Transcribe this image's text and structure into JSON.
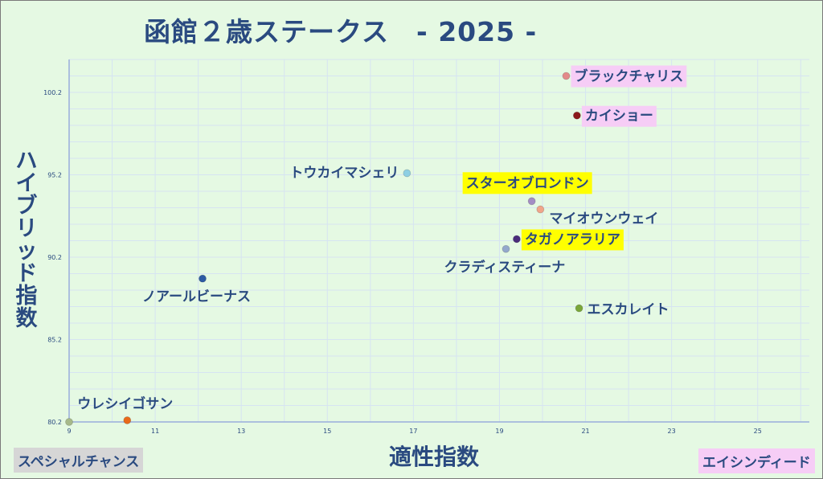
{
  "title": {
    "main": "函館２歳ステークス",
    "year": "- 2025 -"
  },
  "corner_labels": {
    "bottom_left": "スペシャルチャンス",
    "bottom_right": "エイシンディード"
  },
  "colors": {
    "background": "#e5f9e3",
    "text": "#2a4a80",
    "grid": "#d6e4f2",
    "highlight_yellow": "#ffff00",
    "highlight_pink": "#f6cdf6"
  },
  "chart_data": {
    "type": "scatter",
    "title": "函館２歳ステークス - 2025 -",
    "xlabel": "適性指数",
    "ylabel": "ハイブリッド指数",
    "xlim": [
      9,
      26.2
    ],
    "ylim": [
      80.2,
      102.2
    ],
    "xticks": [
      9,
      11,
      13,
      15,
      17,
      19,
      21,
      23,
      25
    ],
    "yticks": [
      80.2,
      85.2,
      90.2,
      95.2,
      100.2
    ],
    "grid": true,
    "points": [
      {
        "name": "ブラックチャリス",
        "x": 20.55,
        "y": 101.2,
        "color": "#e38a8a",
        "label_highlight": "pink"
      },
      {
        "name": "カイショー",
        "x": 20.8,
        "y": 98.8,
        "color": "#8b1a1a",
        "label_highlight": "pink"
      },
      {
        "name": "トウカイマシェリ",
        "x": 16.85,
        "y": 95.3,
        "color": "#8ecfe3",
        "label_highlight": "none"
      },
      {
        "name": "スターオブロンドン",
        "x": 19.75,
        "y": 93.6,
        "color": "#a38dc4",
        "label_highlight": "yellow"
      },
      {
        "name": "マイオウンウェイ",
        "x": 19.95,
        "y": 93.1,
        "color": "#f0a58a",
        "label_highlight": "none"
      },
      {
        "name": "タガノアラリア",
        "x": 19.4,
        "y": 91.3,
        "color": "#4a2c7a",
        "label_highlight": "yellow"
      },
      {
        "name": "クラディスティーナ",
        "x": 19.15,
        "y": 90.7,
        "color": "#94a8cc",
        "label_highlight": "none"
      },
      {
        "name": "ノアールビーナス",
        "x": 12.1,
        "y": 88.9,
        "color": "#2d5ba3",
        "label_highlight": "none"
      },
      {
        "name": "エスカレイト",
        "x": 20.85,
        "y": 87.1,
        "color": "#7aa63a",
        "label_highlight": "none"
      },
      {
        "name": "ウレシイゴサン",
        "x": 10.35,
        "y": 80.3,
        "color": "#e86a1a",
        "label_highlight": "none"
      },
      {
        "name": "スペシャルチャンス",
        "x": 9.0,
        "y": 80.2,
        "color": "#a7b98a",
        "label_highlight": "none"
      }
    ]
  }
}
